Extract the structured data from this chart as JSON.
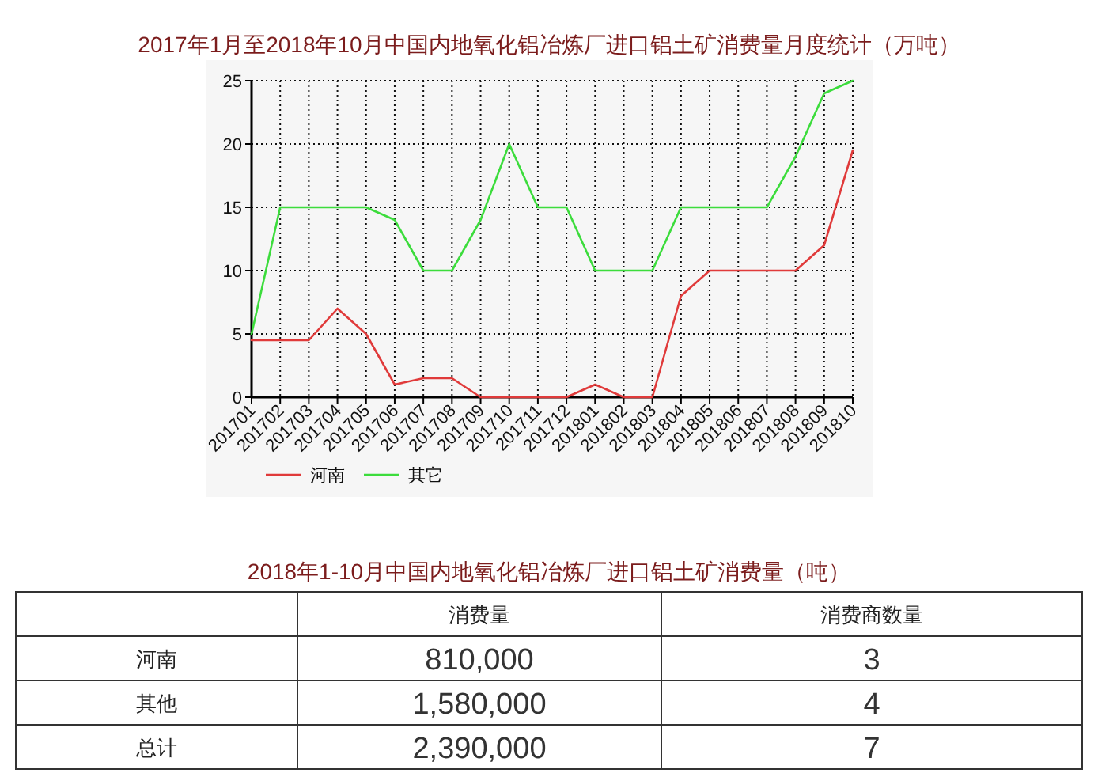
{
  "chart_data": [
    {
      "type": "line",
      "title": "2017年1月至2018年10月中国内地氧化铝冶炼厂进口铝土矿消费量月度统计（万吨）",
      "categories": [
        "201701",
        "201702",
        "201703",
        "201704",
        "201705",
        "201706",
        "201707",
        "201708",
        "201709",
        "201710",
        "201711",
        "201712",
        "201801",
        "201802",
        "201803",
        "201804",
        "201805",
        "201806",
        "201807",
        "201808",
        "201809",
        "201810"
      ],
      "series": [
        {
          "name": "河南",
          "color": "#e03a3a",
          "values": [
            4.5,
            4.5,
            4.5,
            7,
            5,
            1,
            1.5,
            1.5,
            0,
            0,
            0,
            0,
            1,
            0,
            0,
            8,
            10,
            10,
            10,
            10,
            12,
            19.5
          ]
        },
        {
          "name": "其它",
          "color": "#3cdc3c",
          "values": [
            5,
            15,
            15,
            15,
            15,
            14,
            10,
            10,
            14,
            20,
            15,
            15,
            10,
            10,
            10,
            15,
            15,
            15,
            15,
            19,
            24,
            25
          ]
        }
      ],
      "ylim": [
        0,
        25
      ],
      "yticks": [
        0,
        5,
        10,
        15,
        20,
        25
      ],
      "grid": true,
      "legend": "bottom"
    },
    {
      "type": "other",
      "title": "2018年1-10月中国内地氧化铝冶炼厂进口铝土矿消费量（吨）",
      "categories": [
        "河南",
        "其他",
        "总计"
      ],
      "series": [
        {
          "name": "消费量",
          "values": [
            810000,
            1580000,
            2390000
          ],
          "value_labels": [
            "810,000",
            "1,580,000",
            "2,390,000"
          ]
        },
        {
          "name": "消费商数量",
          "values": [
            3,
            4,
            7
          ],
          "value_labels": [
            "3",
            "4",
            "7"
          ]
        }
      ]
    }
  ]
}
